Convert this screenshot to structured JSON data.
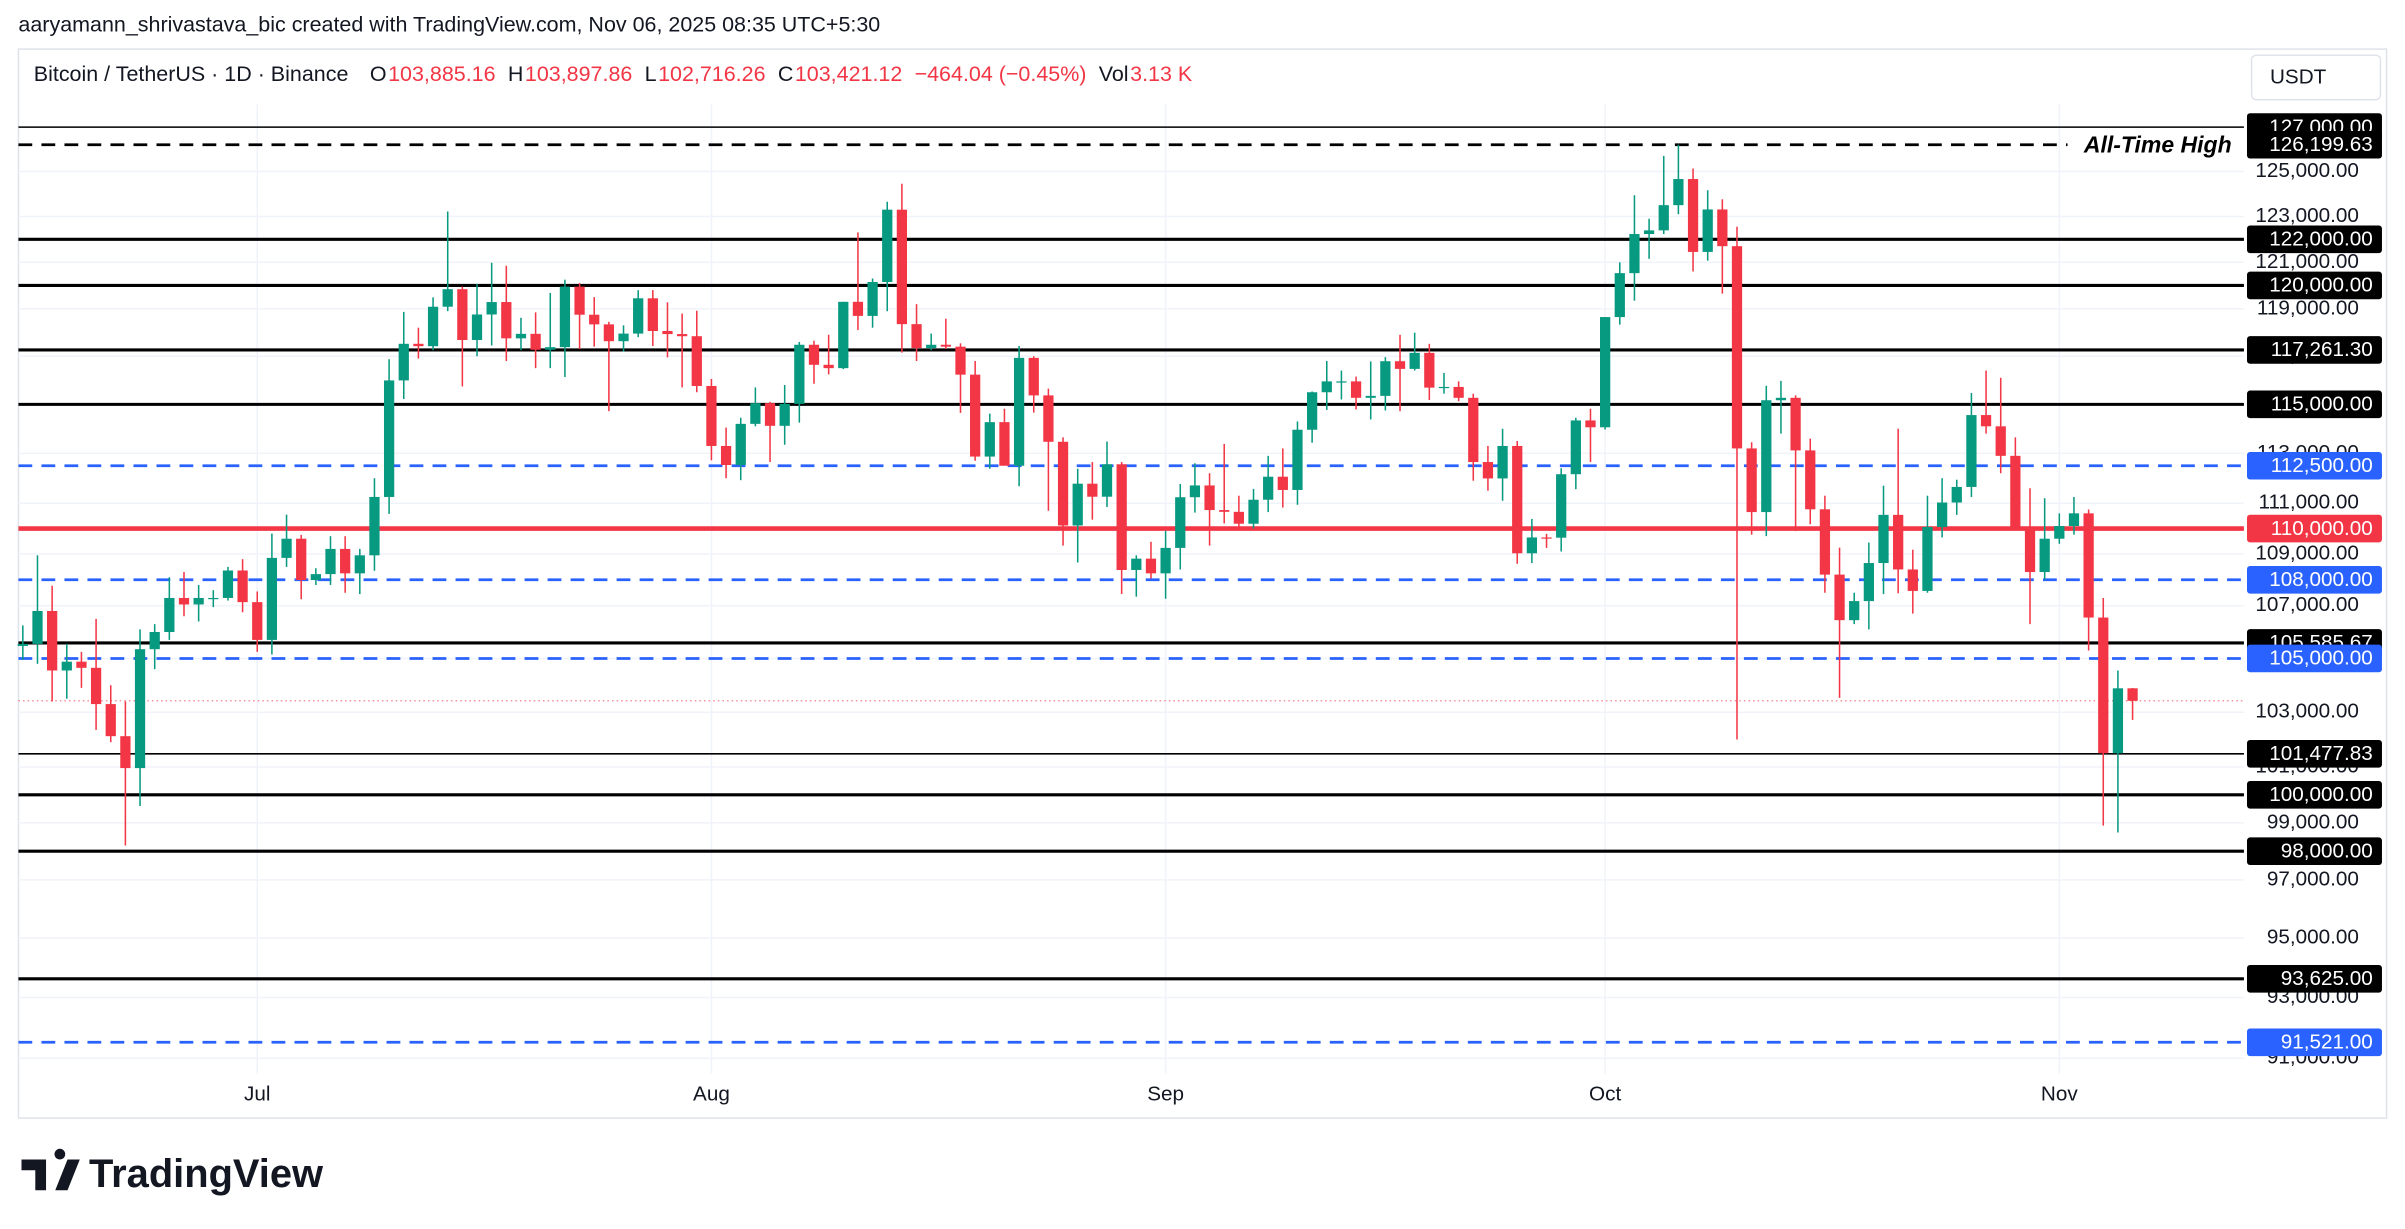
{
  "watermark": "aaryamann_shrivastava_bic created with TradingView.com, Nov 06, 2025 08:35 UTC+5:30",
  "header": {
    "symbol": "Bitcoin / TetherUS · 1D · Binance",
    "fields": [
      {
        "key": "O",
        "value": "103,885.16"
      },
      {
        "key": "H",
        "value": "103,897.86"
      },
      {
        "key": "L",
        "value": "102,716.26"
      },
      {
        "key": "C",
        "value": "103,421.12"
      },
      {
        "value": "−464.04 (−0.45%)"
      },
      {
        "key": "Vol",
        "value": "3.13 K"
      }
    ]
  },
  "currency": "USDT",
  "brand": "TradingView",
  "chart_data": {
    "type": "candlestick",
    "log_scale": true,
    "grid": true,
    "up_color": "#089981",
    "down_color": "#f23645",
    "ylim": [
      90500,
      127900
    ],
    "yticks": [
      {
        "value": 91000,
        "label": "91,000.00"
      },
      {
        "value": 93000,
        "label": "93,000.00"
      },
      {
        "value": 95000,
        "label": "95,000.00"
      },
      {
        "value": 97000,
        "label": "97,000.00"
      },
      {
        "value": 99000,
        "label": "99,000.00"
      },
      {
        "value": 101000,
        "label": "101,000.00"
      },
      {
        "value": 103000,
        "label": "103,000.00"
      },
      {
        "value": 105000,
        "label": "105,000.00"
      },
      {
        "value": 107000,
        "label": "107,000.00"
      },
      {
        "value": 109000,
        "label": "109,000.00"
      },
      {
        "value": 111000,
        "label": "111,000.00"
      },
      {
        "value": 113000,
        "label": "113,000.00"
      },
      {
        "value": 115000,
        "label": "115,000.00"
      },
      {
        "value": 117000,
        "label": "117,000.00"
      },
      {
        "value": 119000,
        "label": "119,000.00"
      },
      {
        "value": 121000,
        "label": "121,000.00"
      },
      {
        "value": 123000,
        "label": "123,000.00"
      },
      {
        "value": 125000,
        "label": "125,000.00"
      },
      {
        "value": 127000,
        "label": "127,000.00"
      }
    ],
    "xlim": [
      -0.3,
      151.6
    ],
    "xticks": [
      {
        "value": 16,
        "label": "Jul"
      },
      {
        "value": 47,
        "label": "Aug"
      },
      {
        "value": 78,
        "label": "Sep"
      },
      {
        "value": 108,
        "label": "Oct"
      },
      {
        "value": 139,
        "label": "Nov"
      }
    ],
    "open": [
      105470,
      105550,
      106800,
      104550,
      104880,
      104650,
      103300,
      102120,
      100960,
      105350,
      106000,
      107300,
      107050,
      107300,
      107300,
      108360,
      107140,
      105700,
      108850,
      109600,
      107990,
      108220,
      109200,
      108250,
      108950,
      111250,
      115990,
      117520,
      117420,
      119090,
      119840,
      117680,
      118760,
      119290,
      117750,
      117940,
      117270,
      117380,
      119950,
      118750,
      118340,
      117630,
      117950,
      119450,
      118060,
      117930,
      117840,
      115760,
      113300,
      112530,
      114200,
      115050,
      114120,
      115020,
      117480,
      116640,
      116500,
      119300,
      118700,
      120150,
      123300,
      118350,
      117340,
      117480,
      117400,
      116230,
      112870,
      114270,
      112500,
      116930,
      115370,
      113470,
      110120,
      111780,
      111260,
      112560,
      108380,
      108820,
      108250,
      109240,
      111240,
      111710,
      110730,
      110660,
      110190,
      111140,
      112060,
      111530,
      113960,
      115500,
      115950,
      115950,
      115270,
      115350,
      116790,
      116470,
      117140,
      115690,
      115720,
      115270,
      112650,
      111990,
      113300,
      109030,
      109650,
      109640,
      112160,
      114340,
      114060,
      118650,
      120530,
      122230,
      122390,
      123500,
      124660,
      121450,
      123310,
      121700,
      113200,
      110650,
      115170,
      115270,
      113120,
      110760,
      108200,
      106450,
      107180,
      108650,
      110540,
      108400,
      107570,
      110060,
      111030,
      111650,
      114560,
      114100,
      112900,
      110050,
      108300,
      109600,
      110100,
      110600,
      106550,
      101500,
      103885.16
    ],
    "high": [
      106250,
      108950,
      107770,
      105550,
      105250,
      106500,
      104000,
      103400,
      106100,
      106300,
      108100,
      108300,
      107800,
      107600,
      108500,
      108800,
      107550,
      109800,
      110550,
      109750,
      108450,
      109700,
      109700,
      109200,
      111999,
      116870,
      118870,
      118200,
      119490,
      123220,
      119950,
      120070,
      120980,
      120850,
      118620,
      118850,
      119680,
      120250,
      120100,
      119500,
      118450,
      118300,
      119800,
      119800,
      119280,
      118800,
      118920,
      116050,
      114050,
      114450,
      115700,
      115100,
      115800,
      117600,
      117650,
      117900,
      119300,
      122300,
      120300,
      123650,
      124450,
      119200,
      117950,
      118580,
      117540,
      116800,
      114620,
      114820,
      117430,
      117000,
      115650,
      113650,
      112380,
      112650,
      113480,
      112650,
      108950,
      109480,
      109910,
      111770,
      112600,
      112200,
      113380,
      111300,
      111570,
      112900,
      113200,
      114300,
      115530,
      116800,
      116400,
      116150,
      116780,
      116960,
      117900,
      117990,
      117520,
      116300,
      115950,
      115440,
      113300,
      114000,
      113500,
      110380,
      109790,
      112400,
      114450,
      114820,
      118650,
      121000,
      123940,
      122900,
      125700,
      126199.63,
      125130,
      124160,
      123760,
      122550,
      113450,
      115770,
      115970,
      115370,
      113600,
      111300,
      109250,
      107500,
      109450,
      111700,
      114000,
      109170,
      111300,
      112000,
      111940,
      115470,
      116400,
      116100,
      113650,
      111600,
      111200,
      110600,
      111250,
      110750,
      107300,
      104550,
      103897.86
    ],
    "low": [
      104950,
      104800,
      103400,
      103500,
      103900,
      102350,
      101900,
      98200,
      99600,
      104600,
      105700,
      106600,
      106400,
      106950,
      107200,
      106750,
      105250,
      105150,
      108500,
      107250,
      107800,
      107800,
      107500,
      107450,
      108350,
      110580,
      115220,
      116900,
      117250,
      118900,
      115740,
      117000,
      117450,
      116800,
      117250,
      116500,
      116500,
      116130,
      117300,
      117400,
      114720,
      117200,
      117800,
      117430,
      116950,
      115700,
      115500,
      112720,
      112000,
      111920,
      114100,
      112650,
      113350,
      114250,
      115850,
      116240,
      116460,
      118100,
      118200,
      118900,
      117150,
      116800,
      117250,
      117300,
      114650,
      112700,
      112380,
      112600,
      111680,
      114660,
      110700,
      109330,
      108670,
      110350,
      110850,
      107450,
      107350,
      108050,
      107270,
      108400,
      110630,
      109330,
      110200,
      110030,
      110000,
      110650,
      110830,
      110940,
      113430,
      114770,
      115200,
      114790,
      114380,
      114750,
      114720,
      116400,
      115180,
      115440,
      115130,
      111900,
      111500,
      111100,
      108620,
      108650,
      109240,
      109100,
      111560,
      112650,
      113970,
      118330,
      119350,
      121150,
      122230,
      123100,
      120600,
      121070,
      119650,
      102000,
      109760,
      109700,
      113800,
      109900,
      110170,
      107500,
      103530,
      106300,
      106100,
      107450,
      107480,
      106700,
      107500,
      109650,
      110540,
      111250,
      113800,
      112200,
      109980,
      106300,
      108000,
      109400,
      109760,
      105300,
      98900,
      98660,
      102716.26
    ],
    "close": [
      105550,
      106800,
      104550,
      104880,
      104650,
      103300,
      102120,
      100960,
      105350,
      106000,
      107300,
      107050,
      107300,
      107300,
      108360,
      107140,
      105700,
      108850,
      109600,
      107990,
      108220,
      109200,
      108250,
      108950,
      111250,
      115990,
      117520,
      117420,
      119090,
      119840,
      117680,
      118760,
      119290,
      117750,
      117940,
      117270,
      117380,
      119950,
      118750,
      118340,
      117630,
      117950,
      119450,
      118060,
      117930,
      117840,
      115760,
      113300,
      112530,
      114200,
      115050,
      114120,
      115020,
      117480,
      116640,
      116500,
      119300,
      118700,
      120150,
      123300,
      118350,
      117340,
      117480,
      117400,
      116230,
      112870,
      114270,
      112500,
      116930,
      115370,
      113470,
      110120,
      111780,
      111260,
      112560,
      108380,
      108820,
      108250,
      109240,
      111240,
      111710,
      110730,
      110660,
      110190,
      111140,
      112060,
      111530,
      113960,
      115500,
      115950,
      115950,
      115270,
      115350,
      116790,
      116470,
      117140,
      115690,
      115720,
      115270,
      112650,
      111990,
      113300,
      109030,
      109650,
      109640,
      112160,
      114340,
      114060,
      118650,
      120530,
      122230,
      122390,
      123500,
      124660,
      121450,
      123310,
      121700,
      113200,
      110650,
      115170,
      115270,
      113120,
      110760,
      108200,
      106450,
      107180,
      108650,
      110540,
      108400,
      107570,
      110060,
      111030,
      111650,
      114560,
      114100,
      112900,
      110050,
      108300,
      109600,
      110100,
      110600,
      106550,
      101500,
      103885.16,
      103421.12
    ],
    "levels": [
      {
        "value": 127000,
        "label": "127,000.00",
        "color": "#000000",
        "style": "thin"
      },
      {
        "value": 126199.63,
        "label": "126,199.63",
        "color": "#000000",
        "style": "dashed",
        "note": "All-Time High"
      },
      {
        "value": 122000,
        "label": "122,000.00",
        "color": "#000000",
        "style": "solid"
      },
      {
        "value": 120000,
        "label": "120,000.00",
        "color": "#000000",
        "style": "solid"
      },
      {
        "value": 117261.3,
        "label": "117,261.30",
        "color": "#000000",
        "style": "solid"
      },
      {
        "value": 115000,
        "label": "115,000.00",
        "color": "#000000",
        "style": "solid"
      },
      {
        "value": 112500,
        "label": "112,500.00",
        "color": "#2962ff",
        "style": "dashed"
      },
      {
        "value": 110000,
        "label": "110,000.00",
        "color": "#f23645",
        "style": "thick"
      },
      {
        "value": 108000,
        "label": "108,000.00",
        "color": "#2962ff",
        "style": "dashed"
      },
      {
        "value": 105585.67,
        "label": "105,585.67",
        "color": "#000000",
        "style": "solid"
      },
      {
        "value": 105000,
        "label": "105,000.00",
        "color": "#2962ff",
        "style": "dashed"
      },
      {
        "value": 101477.83,
        "label": "101,477.83",
        "color": "#000000",
        "style": "thin"
      },
      {
        "value": 100000,
        "label": "100,000.00",
        "color": "#000000",
        "style": "solid"
      },
      {
        "value": 98000,
        "label": "98,000.00",
        "color": "#000000",
        "style": "solid"
      },
      {
        "value": 93625,
        "label": "93,625.00",
        "color": "#000000",
        "style": "solid"
      },
      {
        "value": 91521,
        "label": "91,521.00",
        "color": "#2962ff",
        "style": "dashed"
      }
    ]
  }
}
